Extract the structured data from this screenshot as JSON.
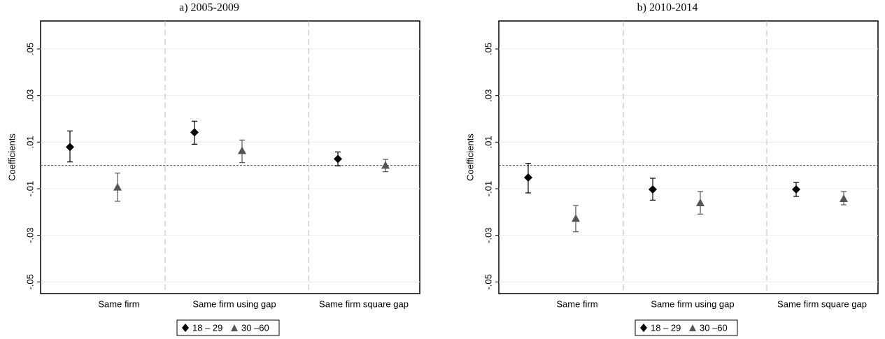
{
  "chart_data": [
    {
      "type": "errorbar",
      "title": "a) 2005-2009",
      "y_label": "Coefficients",
      "categories": [
        "Same firm",
        "Same firm using gap",
        "Same firm square gap"
      ],
      "series": [
        {
          "name": "18 – 29",
          "color": "#000000",
          "marker": "diamond",
          "values": [
            0.0079,
            0.0142,
            0.0028
          ],
          "lower": [
            0.0015,
            0.0091,
            -0.0002
          ],
          "upper": [
            0.0148,
            0.019,
            0.0058
          ]
        },
        {
          "name": "30 –60",
          "color": "#555555",
          "marker": "triangle",
          "values": [
            -0.0093,
            0.0064,
            0.0001
          ],
          "lower": [
            -0.0154,
            0.0012,
            -0.0027
          ],
          "upper": [
            -0.0033,
            0.0109,
            0.0026
          ]
        }
      ],
      "ylim": [
        -0.055,
        0.062
      ],
      "yticks": [
        {
          "value": 0.05,
          "label": ".05"
        },
        {
          "value": 0.03,
          "label": ".03"
        },
        {
          "value": 0.01,
          "label": ".01"
        },
        {
          "value": -0.01,
          "label": "-.01"
        },
        {
          "value": -0.03,
          "label": "-.03"
        },
        {
          "value": -0.05,
          "label": "-.05"
        }
      ],
      "reference_line": 0,
      "grid": true
    },
    {
      "type": "errorbar",
      "title": "b) 2010-2014",
      "y_label": "Coefficients",
      "categories": [
        "Same firm",
        "Same firm using gap",
        "Same firm square gap"
      ],
      "series": [
        {
          "name": "18 – 29",
          "color": "#000000",
          "marker": "diamond",
          "values": [
            -0.0052,
            -0.0103,
            -0.0103
          ],
          "lower": [
            -0.0118,
            -0.0149,
            -0.0133
          ],
          "upper": [
            0.0009,
            -0.0055,
            -0.0073
          ]
        },
        {
          "name": "30 –60",
          "color": "#555555",
          "marker": "triangle",
          "values": [
            -0.0227,
            -0.016,
            -0.0142
          ],
          "lower": [
            -0.0285,
            -0.0209,
            -0.0169
          ],
          "upper": [
            -0.0172,
            -0.0112,
            -0.0112
          ]
        }
      ],
      "ylim": [
        -0.055,
        0.062
      ],
      "yticks": [
        {
          "value": 0.05,
          "label": ".05"
        },
        {
          "value": 0.03,
          "label": ".03"
        },
        {
          "value": 0.01,
          "label": ".01"
        },
        {
          "value": -0.01,
          "label": "-.01"
        },
        {
          "value": -0.03,
          "label": "-.03"
        },
        {
          "value": -0.05,
          "label": "-.05"
        }
      ],
      "reference_line": 0,
      "grid": true
    }
  ]
}
